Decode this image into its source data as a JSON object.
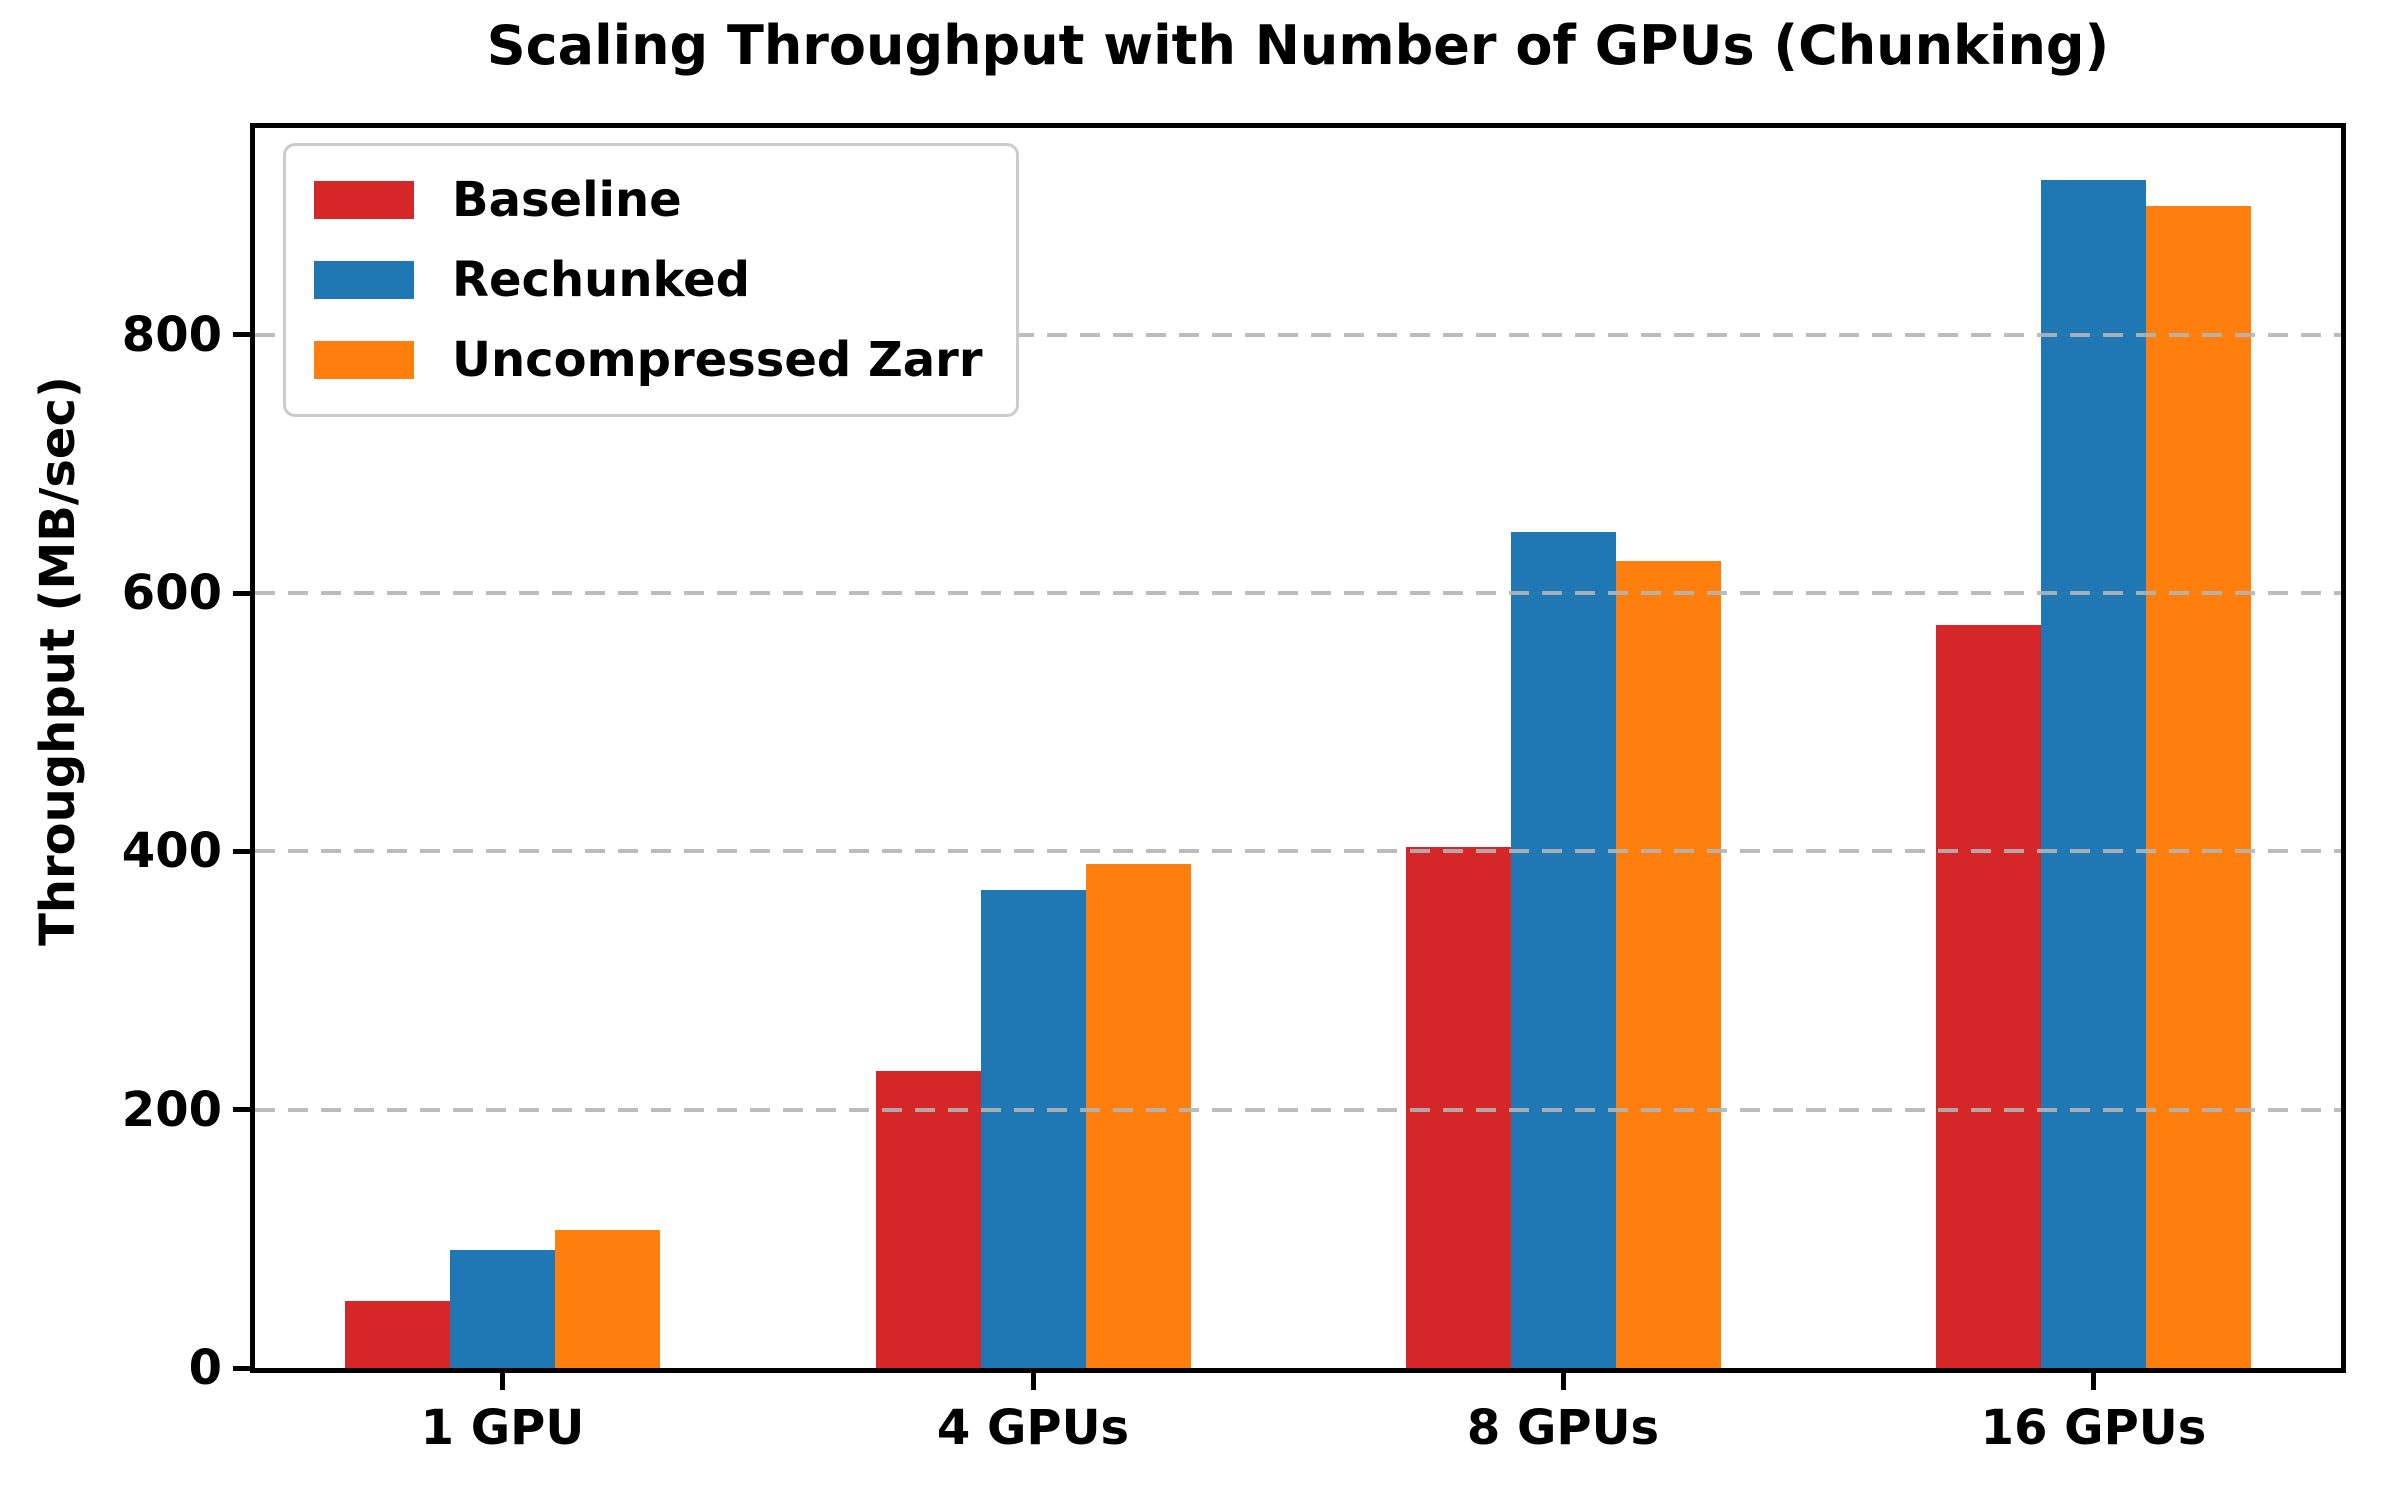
{
  "title": "Scaling Throughput with Number of GPUs (Chunking)",
  "ylabel": "Throughput (MB/sec)",
  "chart_data": {
    "type": "bar",
    "title": "Scaling Throughput with Number of GPUs (Chunking)",
    "xlabel": "",
    "ylabel": "Throughput (MB/sec)",
    "categories": [
      "1 GPU",
      "4 GPUs",
      "8 GPUs",
      "16 GPUs"
    ],
    "series": [
      {
        "name": "Baseline",
        "color": "#d62728",
        "values": [
          52,
          230,
          403,
          575
        ]
      },
      {
        "name": "Rechunked",
        "color": "#1f77b4",
        "values": [
          91,
          370,
          647,
          920
        ]
      },
      {
        "name": "Uncompressed Zarr",
        "color": "#ff7f0e",
        "values": [
          107,
          390,
          625,
          900
        ]
      }
    ],
    "yticks": [
      0,
      200,
      400,
      600,
      800
    ],
    "ylim": [
      0,
      960
    ],
    "grid": true,
    "grid_style": "dashed",
    "grid_color": "#b4b4b4",
    "legend_position": "upper left",
    "background": "#ffffff"
  }
}
